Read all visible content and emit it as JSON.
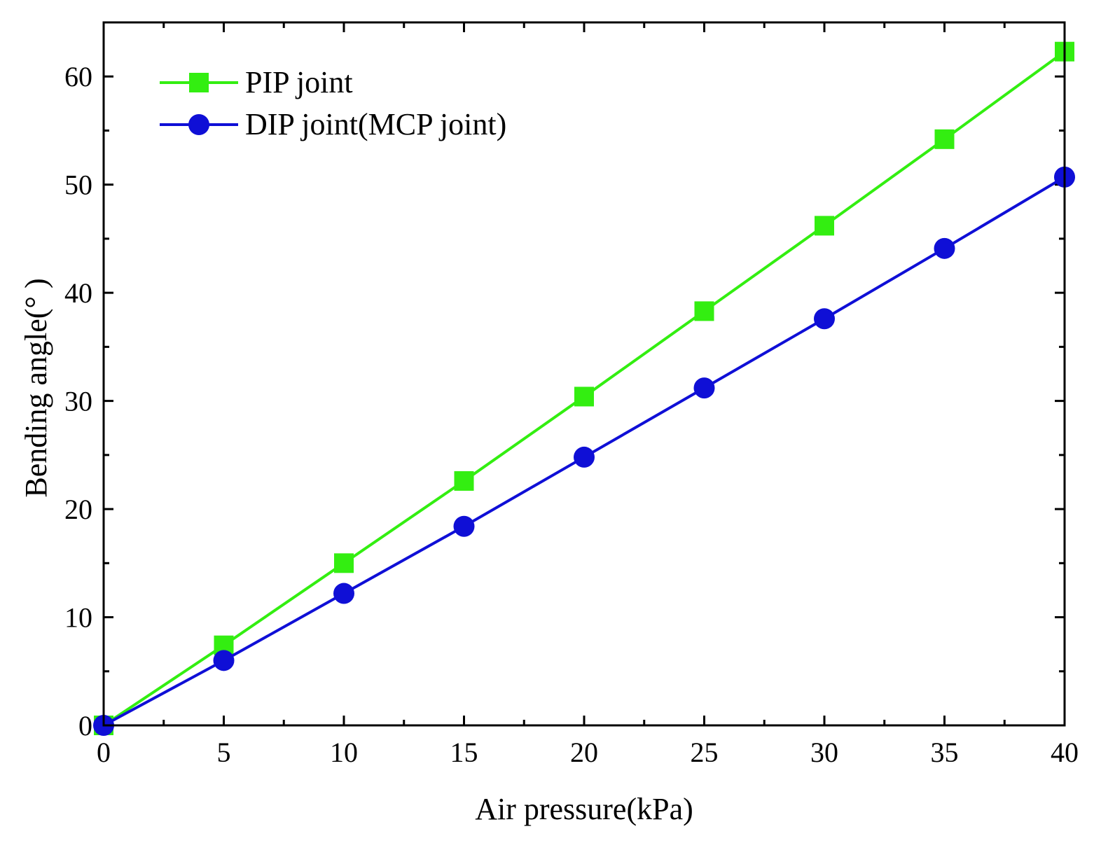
{
  "chart_data": {
    "type": "line",
    "title": "",
    "xlabel": "Air pressure(kPa)",
    "ylabel": "Bending angle(°  )",
    "xlim": [
      0,
      40
    ],
    "ylim": [
      0,
      65
    ],
    "x_ticks": [
      0,
      5,
      10,
      15,
      20,
      25,
      30,
      35,
      40
    ],
    "y_ticks": [
      0,
      10,
      20,
      30,
      40,
      50,
      60
    ],
    "x_tick_labels": [
      "0",
      "5",
      "10",
      "15",
      "20",
      "25",
      "30",
      "35",
      "40"
    ],
    "y_tick_labels": [
      "0",
      "10",
      "20",
      "30",
      "40",
      "50",
      "60"
    ],
    "grid": false,
    "legend_position": "top-left",
    "x": [
      0,
      5,
      10,
      15,
      20,
      25,
      30,
      35,
      40
    ],
    "series": [
      {
        "name": "PIP joint",
        "marker": "square",
        "color": "#33ee11",
        "values": [
          0,
          7.4,
          15.0,
          22.6,
          30.4,
          38.3,
          46.2,
          54.2,
          62.3
        ]
      },
      {
        "name": "DIP joint(MCP joint)",
        "marker": "circle",
        "color": "#0f0fd6",
        "values": [
          0,
          6.0,
          12.2,
          18.4,
          24.8,
          31.2,
          37.6,
          44.1,
          50.7
        ]
      }
    ]
  }
}
